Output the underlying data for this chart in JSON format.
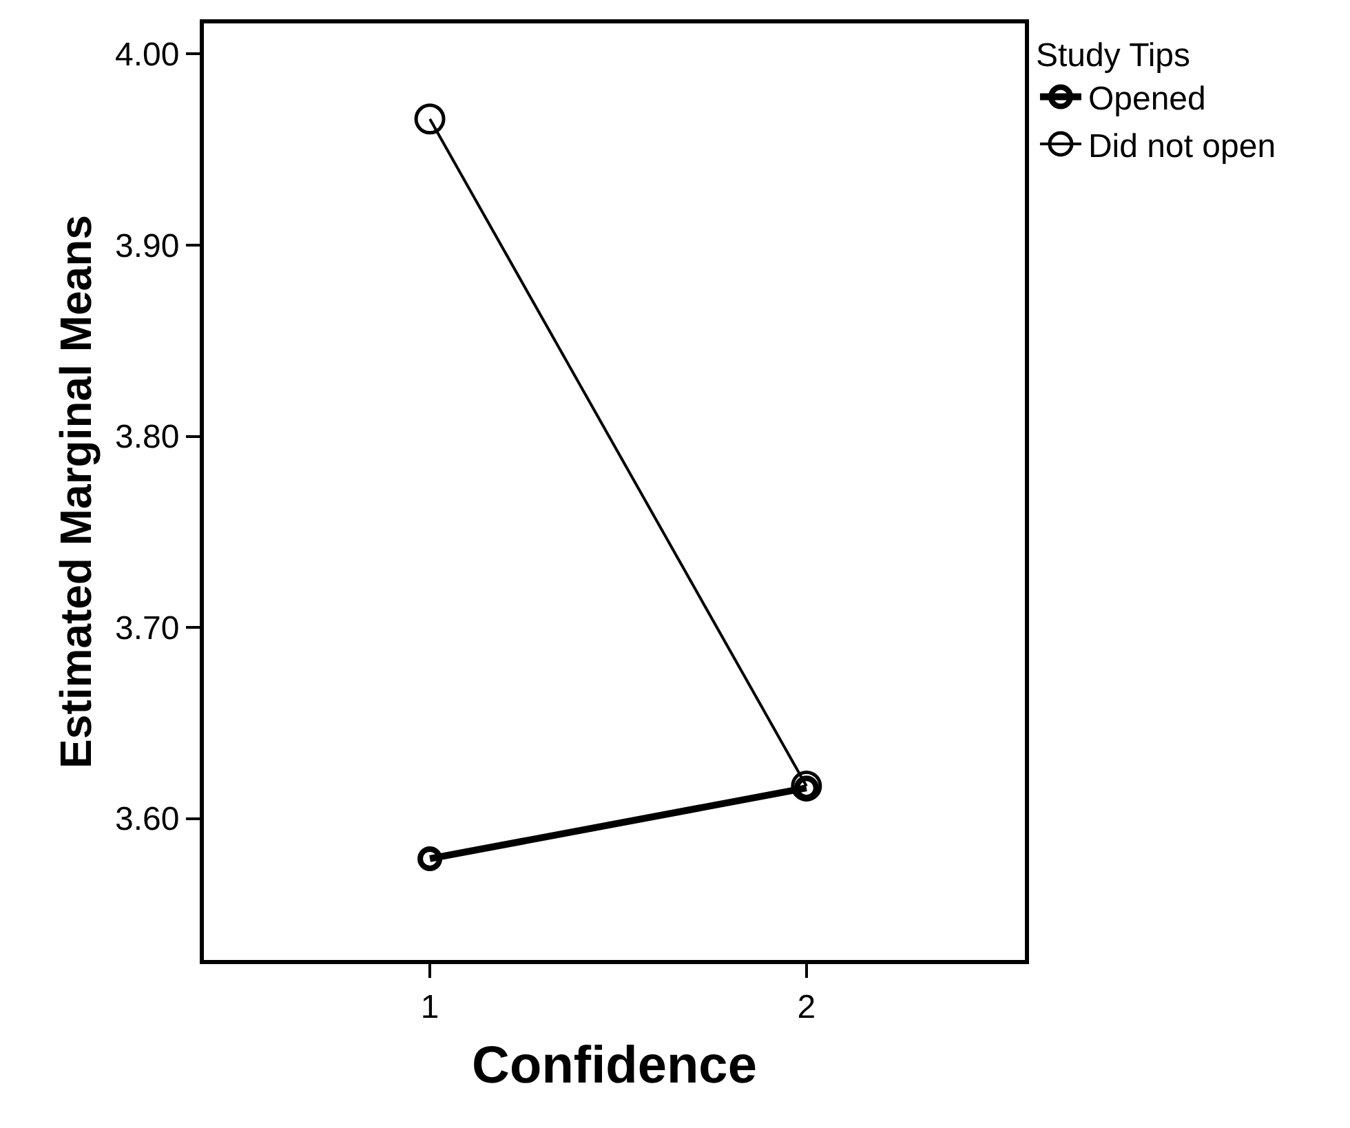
{
  "chart_data": {
    "type": "line",
    "xlabel": "Confidence",
    "ylabel": "Estimated Marginal Means",
    "legend_title": "Study Tips",
    "x": [
      1,
      2
    ],
    "xlim": [
      0.4,
      2.58
    ],
    "xticks": [
      1,
      2
    ],
    "ylim": [
      3.526,
      4.016
    ],
    "yticks": [
      {
        "value": 3.6,
        "label": "3.60"
      },
      {
        "value": 3.7,
        "label": "3.70"
      },
      {
        "value": 3.8,
        "label": "3.80"
      },
      {
        "value": 3.9,
        "label": "3.90"
      },
      {
        "value": 4.0,
        "label": "4.00"
      }
    ],
    "series": [
      {
        "name": "Opened",
        "color": "#000000",
        "values": [
          3.579,
          3.616
        ]
      },
      {
        "name": "Did not open",
        "color": "#000000",
        "values": [
          3.966,
          3.617
        ]
      }
    ],
    "marker": "circle",
    "line_style": "solid",
    "grid": false,
    "legend": "right"
  }
}
